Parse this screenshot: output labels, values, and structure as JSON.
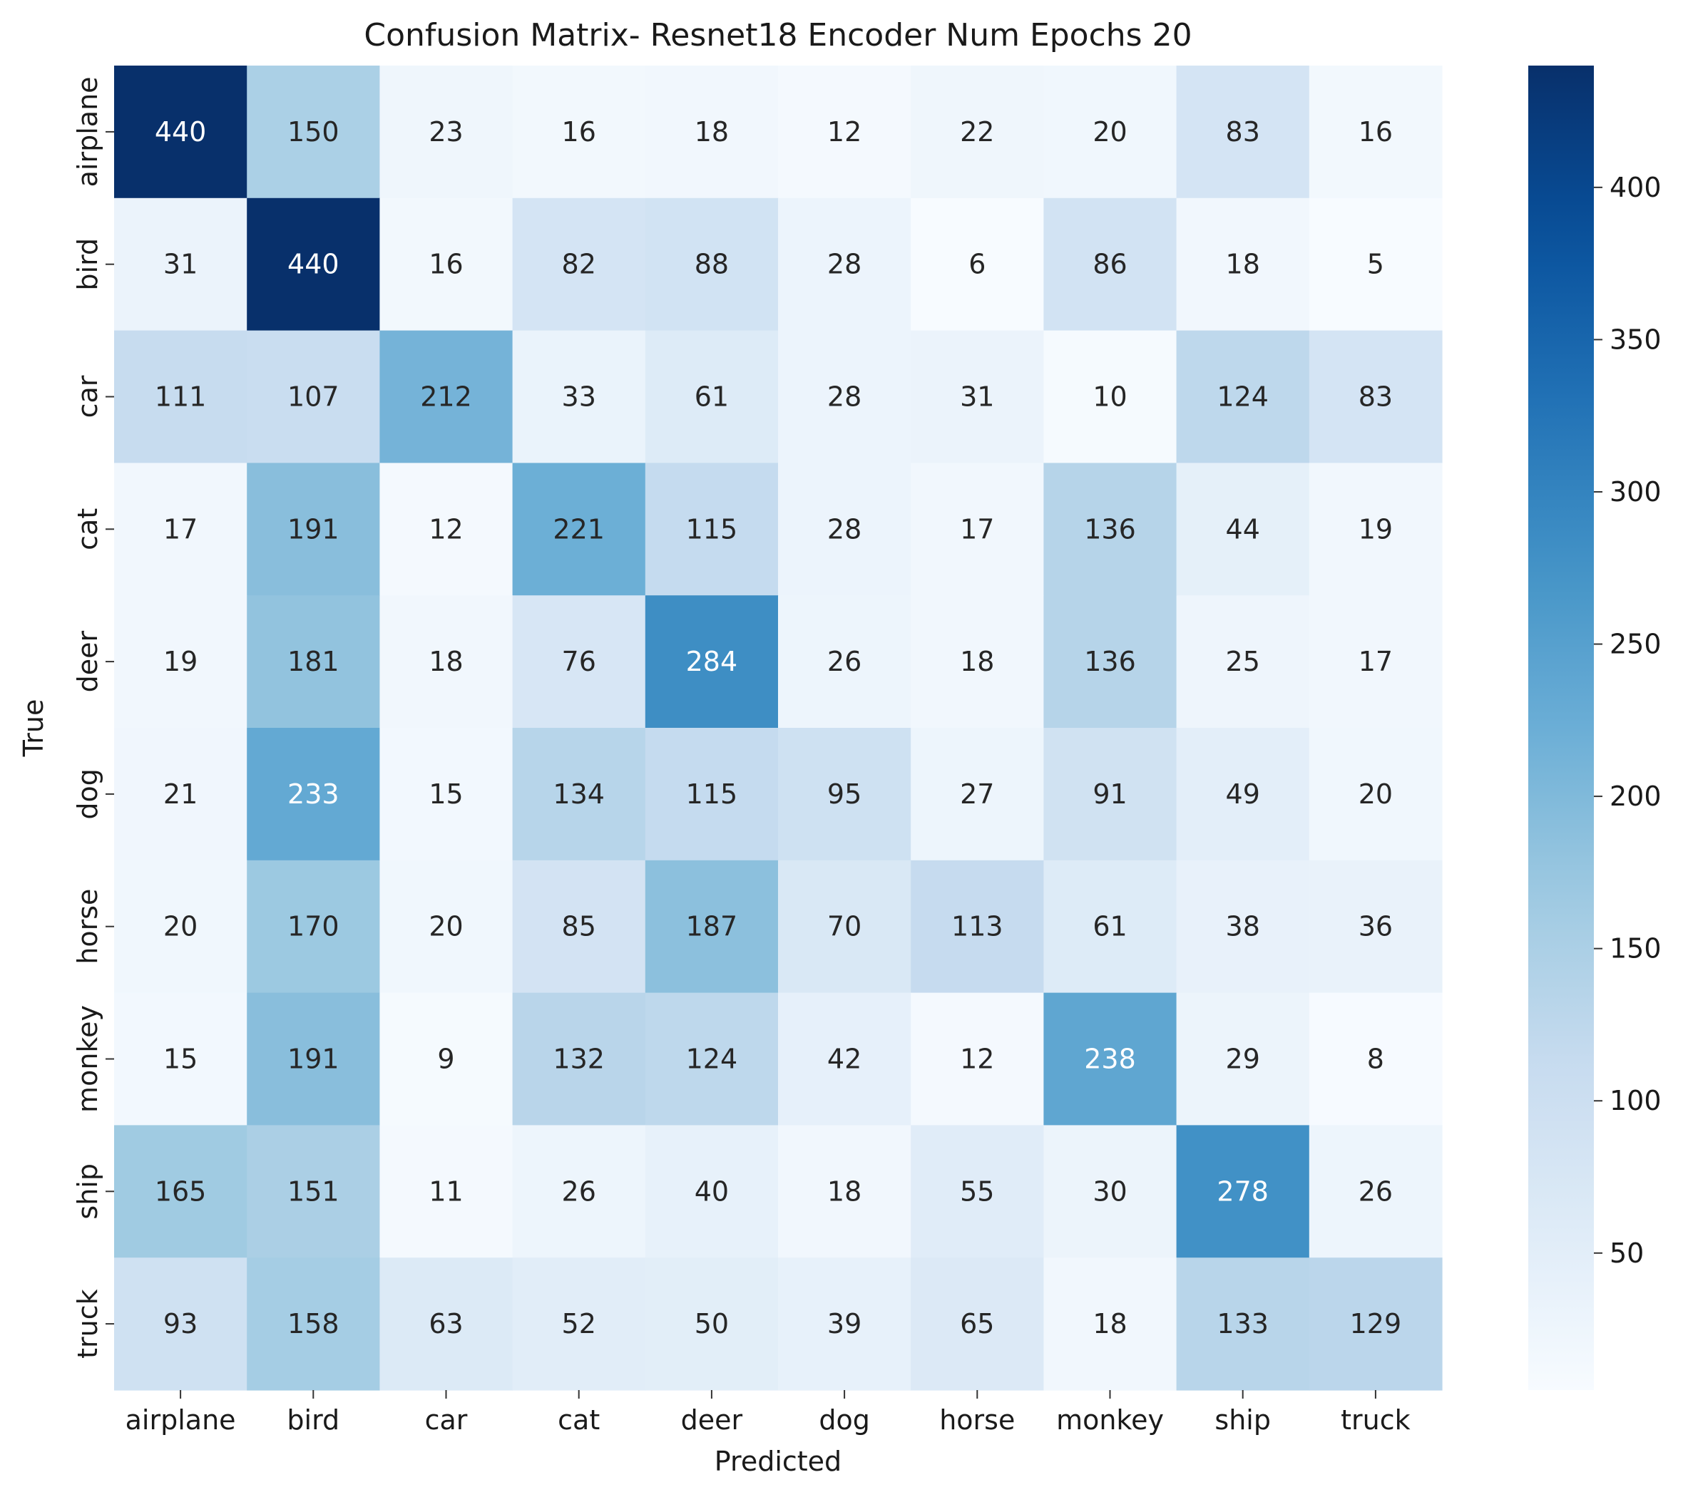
{
  "chart_data": {
    "type": "heatmap",
    "title": "Confusion Matrix- Resnet18 Encoder Num Epochs 20",
    "xlabel": "Predicted",
    "ylabel": "True",
    "x_categories": [
      "airplane",
      "bird",
      "car",
      "cat",
      "deer",
      "dog",
      "horse",
      "monkey",
      "ship",
      "truck"
    ],
    "y_categories": [
      "airplane",
      "bird",
      "car",
      "cat",
      "deer",
      "dog",
      "horse",
      "monkey",
      "ship",
      "truck"
    ],
    "values": [
      [
        440,
        150,
        23,
        16,
        18,
        12,
        22,
        20,
        83,
        16
      ],
      [
        31,
        440,
        16,
        82,
        88,
        28,
        6,
        86,
        18,
        5
      ],
      [
        111,
        107,
        212,
        33,
        61,
        28,
        31,
        10,
        124,
        83
      ],
      [
        17,
        191,
        12,
        221,
        115,
        28,
        17,
        136,
        44,
        19
      ],
      [
        19,
        181,
        18,
        76,
        284,
        26,
        18,
        136,
        25,
        17
      ],
      [
        21,
        233,
        15,
        134,
        115,
        95,
        27,
        91,
        49,
        20
      ],
      [
        20,
        170,
        20,
        85,
        187,
        70,
        113,
        61,
        38,
        36
      ],
      [
        15,
        191,
        9,
        132,
        124,
        42,
        12,
        238,
        29,
        8
      ],
      [
        165,
        151,
        11,
        26,
        40,
        18,
        55,
        30,
        278,
        26
      ],
      [
        93,
        158,
        63,
        52,
        50,
        39,
        65,
        18,
        133,
        129
      ]
    ],
    "colormap": "Blues",
    "vmin": 5,
    "vmax": 440,
    "colorbar_ticks": [
      50,
      100,
      150,
      200,
      250,
      300,
      350,
      400
    ],
    "annotations": true
  }
}
